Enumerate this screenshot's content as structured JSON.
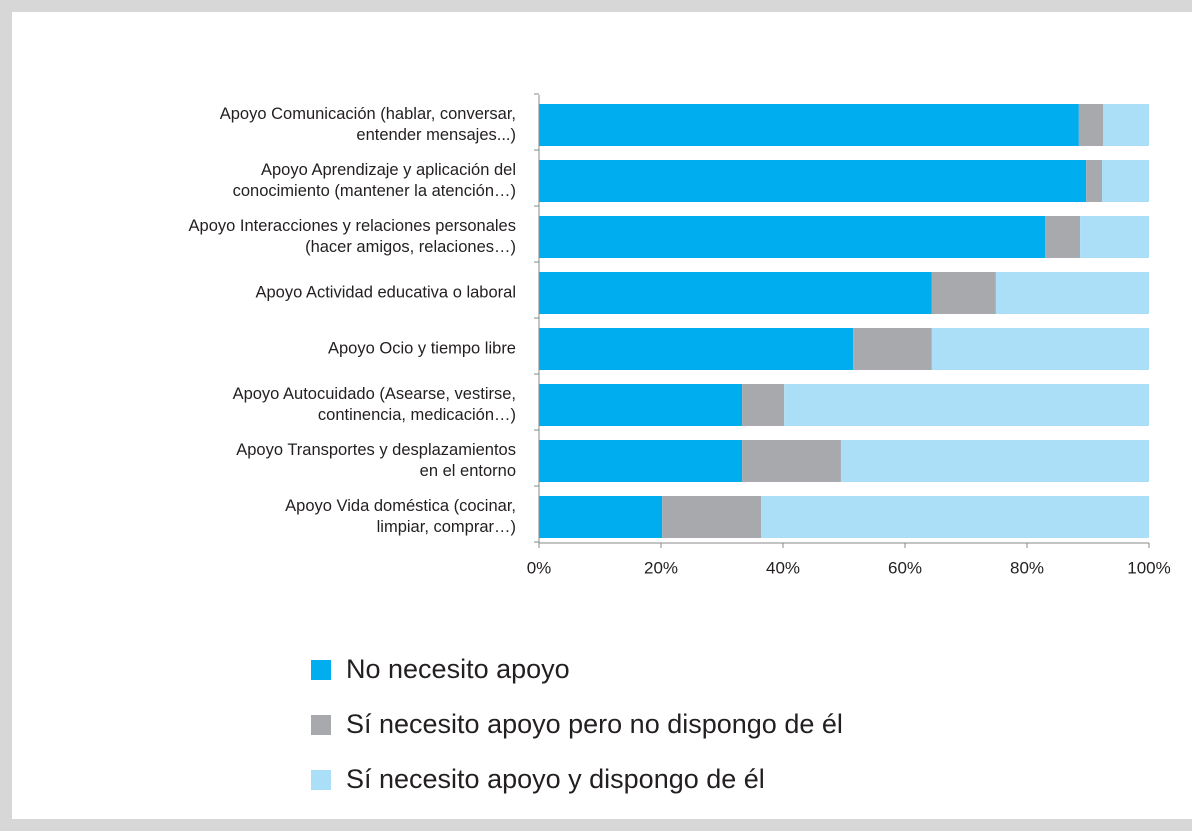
{
  "chart_data": {
    "type": "stacked_bar_horizontal",
    "categories": [
      [
        "Apoyo Comunicación (hablar, conversar,",
        "entender mensajes...)"
      ],
      [
        "Apoyo Aprendizaje y aplicación del",
        "conocimiento (mantener la atención…)"
      ],
      [
        "Apoyo Interacciones y relaciones personales",
        "(hacer amigos, relaciones…)"
      ],
      [
        "Apoyo Actividad educativa o laboral"
      ],
      [
        "Apoyo Ocio y tiempo libre"
      ],
      [
        "Apoyo Autocuidado (Asearse, vestirse,",
        "continencia, medicación…)"
      ],
      [
        "Apoyo Transportes y desplazamientos",
        "en el entorno"
      ],
      [
        "Apoyo Vida doméstica (cocinar,",
        "limpiar, comprar…)"
      ]
    ],
    "series": [
      {
        "name": "No necesito apoyo",
        "color": "#00adef",
        "values": [
          88.5,
          89.7,
          83.0,
          64.4,
          51.5,
          33.3,
          33.3,
          20.2
        ]
      },
      {
        "name": "Sí necesito apoyo pero no dispongo de él",
        "color": "#a7a9ac",
        "values": [
          4.0,
          2.6,
          5.7,
          10.5,
          12.9,
          6.9,
          16.2,
          16.2
        ]
      },
      {
        "name": "Sí necesito apoyo y dispongo de él",
        "color": "#abdff7",
        "values": [
          7.5,
          7.7,
          11.3,
          25.1,
          35.6,
          59.8,
          50.5,
          63.6
        ]
      }
    ],
    "xlim": [
      0,
      100
    ],
    "xticks": [
      {
        "value": 0,
        "label": "0%"
      },
      {
        "value": 20,
        "label": "20%"
      },
      {
        "value": 40,
        "label": "40%"
      },
      {
        "value": 60,
        "label": "60%"
      },
      {
        "value": 80,
        "label": "80%"
      },
      {
        "value": 100,
        "label": "100%"
      }
    ]
  }
}
